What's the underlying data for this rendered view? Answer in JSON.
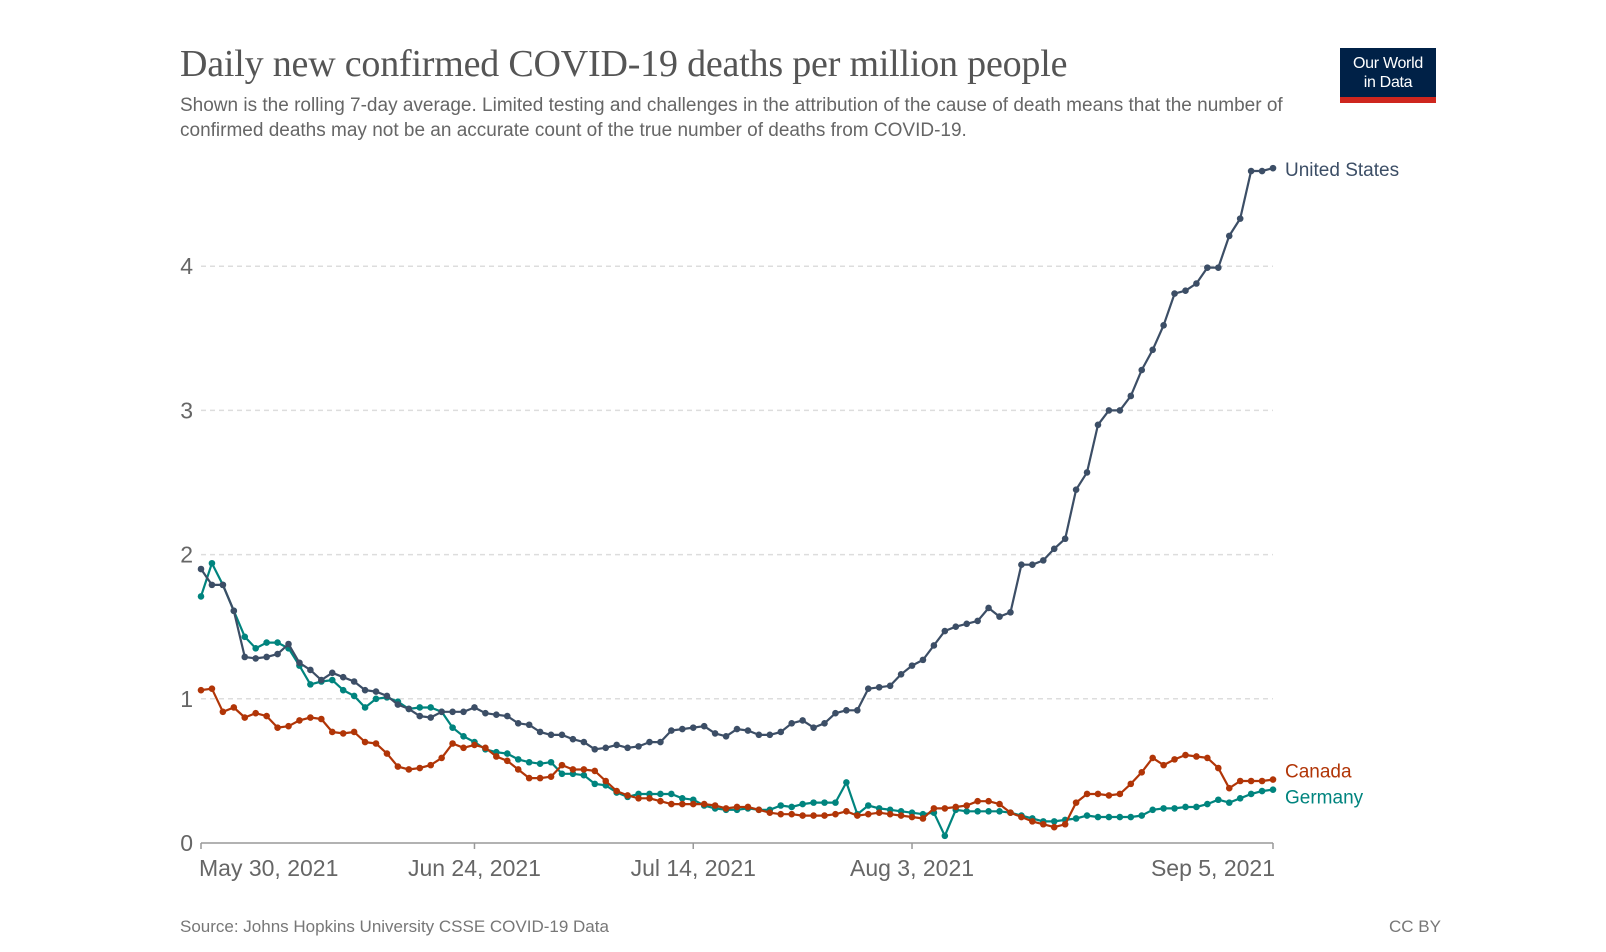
{
  "header": {
    "title": "Daily new confirmed COVID-19 deaths per million people",
    "subtitle": "Shown is the rolling 7-day average. Limited testing and challenges in the attribution of the cause of death means that the number of confirmed deaths may not be an accurate count of the true number of deaths from COVID-19.",
    "logo_line1": "Our World",
    "logo_line2": "in Data",
    "logo_bg": "#002147",
    "logo_accent": "#ce261e"
  },
  "footer": {
    "source": "Source: Johns Hopkins University CSSE COVID-19 Data",
    "license": "CC BY"
  },
  "chart_data": {
    "type": "line",
    "title": "Daily new confirmed COVID-19 deaths per million people",
    "xlabel": "",
    "ylabel": "",
    "x_start": "2021-05-30",
    "x_end": "2021-09-05",
    "x_step": "1 day",
    "x_ticks": [
      {
        "label": "May 30, 2021",
        "day": 0
      },
      {
        "label": "Jun 24, 2021",
        "day": 25
      },
      {
        "label": "Jul 14, 2021",
        "day": 45
      },
      {
        "label": "Aug 3, 2021",
        "day": 65
      },
      {
        "label": "Sep 5, 2021",
        "day": 98
      }
    ],
    "y_ticks": [
      0,
      1,
      2,
      3,
      4
    ],
    "ylim": [
      0,
      4.75
    ],
    "grid": "horizontal dashed",
    "legend": "inline-right",
    "series": [
      {
        "name": "United States",
        "color": "#3c4e66",
        "values": [
          1.9,
          1.79,
          1.79,
          1.61,
          1.29,
          1.28,
          1.29,
          1.31,
          1.38,
          1.25,
          1.2,
          1.13,
          1.18,
          1.15,
          1.12,
          1.06,
          1.05,
          1.02,
          0.96,
          0.93,
          0.88,
          0.87,
          0.91,
          0.91,
          0.91,
          0.94,
          0.9,
          0.89,
          0.88,
          0.83,
          0.82,
          0.77,
          0.75,
          0.75,
          0.72,
          0.7,
          0.65,
          0.66,
          0.68,
          0.66,
          0.67,
          0.7,
          0.7,
          0.78,
          0.79,
          0.8,
          0.81,
          0.76,
          0.74,
          0.79,
          0.78,
          0.75,
          0.75,
          0.77,
          0.83,
          0.85,
          0.8,
          0.83,
          0.9,
          0.92,
          0.92,
          1.07,
          1.08,
          1.09,
          1.17,
          1.23,
          1.27,
          1.37,
          1.47,
          1.5,
          1.52,
          1.54,
          1.63,
          1.57,
          1.6,
          1.93,
          1.93,
          1.96,
          2.04,
          2.11,
          2.45,
          2.57,
          2.9,
          3.0,
          3.0,
          3.1,
          3.28,
          3.42,
          3.59,
          3.81,
          3.83,
          3.88,
          3.99,
          3.99,
          4.21,
          4.33,
          4.66,
          4.66,
          4.68
        ]
      },
      {
        "name": "Canada",
        "color": "#b13507",
        "values": [
          1.06,
          1.07,
          0.91,
          0.94,
          0.87,
          0.9,
          0.88,
          0.8,
          0.81,
          0.85,
          0.87,
          0.86,
          0.77,
          0.76,
          0.77,
          0.7,
          0.69,
          0.62,
          0.53,
          0.51,
          0.52,
          0.54,
          0.59,
          0.69,
          0.66,
          0.68,
          0.66,
          0.6,
          0.57,
          0.51,
          0.45,
          0.45,
          0.46,
          0.54,
          0.51,
          0.51,
          0.5,
          0.43,
          0.36,
          0.33,
          0.31,
          0.31,
          0.29,
          0.27,
          0.27,
          0.27,
          0.27,
          0.26,
          0.24,
          0.25,
          0.25,
          0.23,
          0.21,
          0.2,
          0.2,
          0.19,
          0.19,
          0.19,
          0.2,
          0.22,
          0.19,
          0.2,
          0.21,
          0.2,
          0.19,
          0.18,
          0.17,
          0.24,
          0.24,
          0.25,
          0.26,
          0.29,
          0.29,
          0.27,
          0.21,
          0.18,
          0.15,
          0.13,
          0.11,
          0.13,
          0.28,
          0.34,
          0.34,
          0.33,
          0.34,
          0.41,
          0.49,
          0.59,
          0.54,
          0.58,
          0.61,
          0.6,
          0.59,
          0.52,
          0.38,
          0.43,
          0.43,
          0.43,
          0.44
        ]
      },
      {
        "name": "Germany",
        "color": "#00847e",
        "values": [
          1.71,
          1.94,
          1.79,
          1.61,
          1.43,
          1.35,
          1.39,
          1.39,
          1.35,
          1.23,
          1.1,
          1.12,
          1.13,
          1.06,
          1.02,
          0.94,
          1.0,
          1.01,
          0.98,
          0.93,
          0.94,
          0.94,
          0.91,
          0.8,
          0.74,
          0.7,
          0.65,
          0.63,
          0.62,
          0.58,
          0.56,
          0.55,
          0.56,
          0.48,
          0.48,
          0.47,
          0.41,
          0.4,
          0.35,
          0.32,
          0.34,
          0.34,
          0.34,
          0.34,
          0.31,
          0.3,
          0.26,
          0.24,
          0.23,
          0.23,
          0.24,
          0.23,
          0.23,
          0.26,
          0.25,
          0.27,
          0.28,
          0.28,
          0.28,
          0.42,
          0.2,
          0.26,
          0.24,
          0.23,
          0.22,
          0.21,
          0.2,
          0.21,
          0.05,
          0.23,
          0.22,
          0.22,
          0.22,
          0.22,
          0.21,
          0.19,
          0.17,
          0.15,
          0.15,
          0.16,
          0.17,
          0.19,
          0.18,
          0.18,
          0.18,
          0.18,
          0.19,
          0.23,
          0.24,
          0.24,
          0.25,
          0.25,
          0.27,
          0.3,
          0.28,
          0.31,
          0.34,
          0.36,
          0.37
        ]
      }
    ]
  }
}
